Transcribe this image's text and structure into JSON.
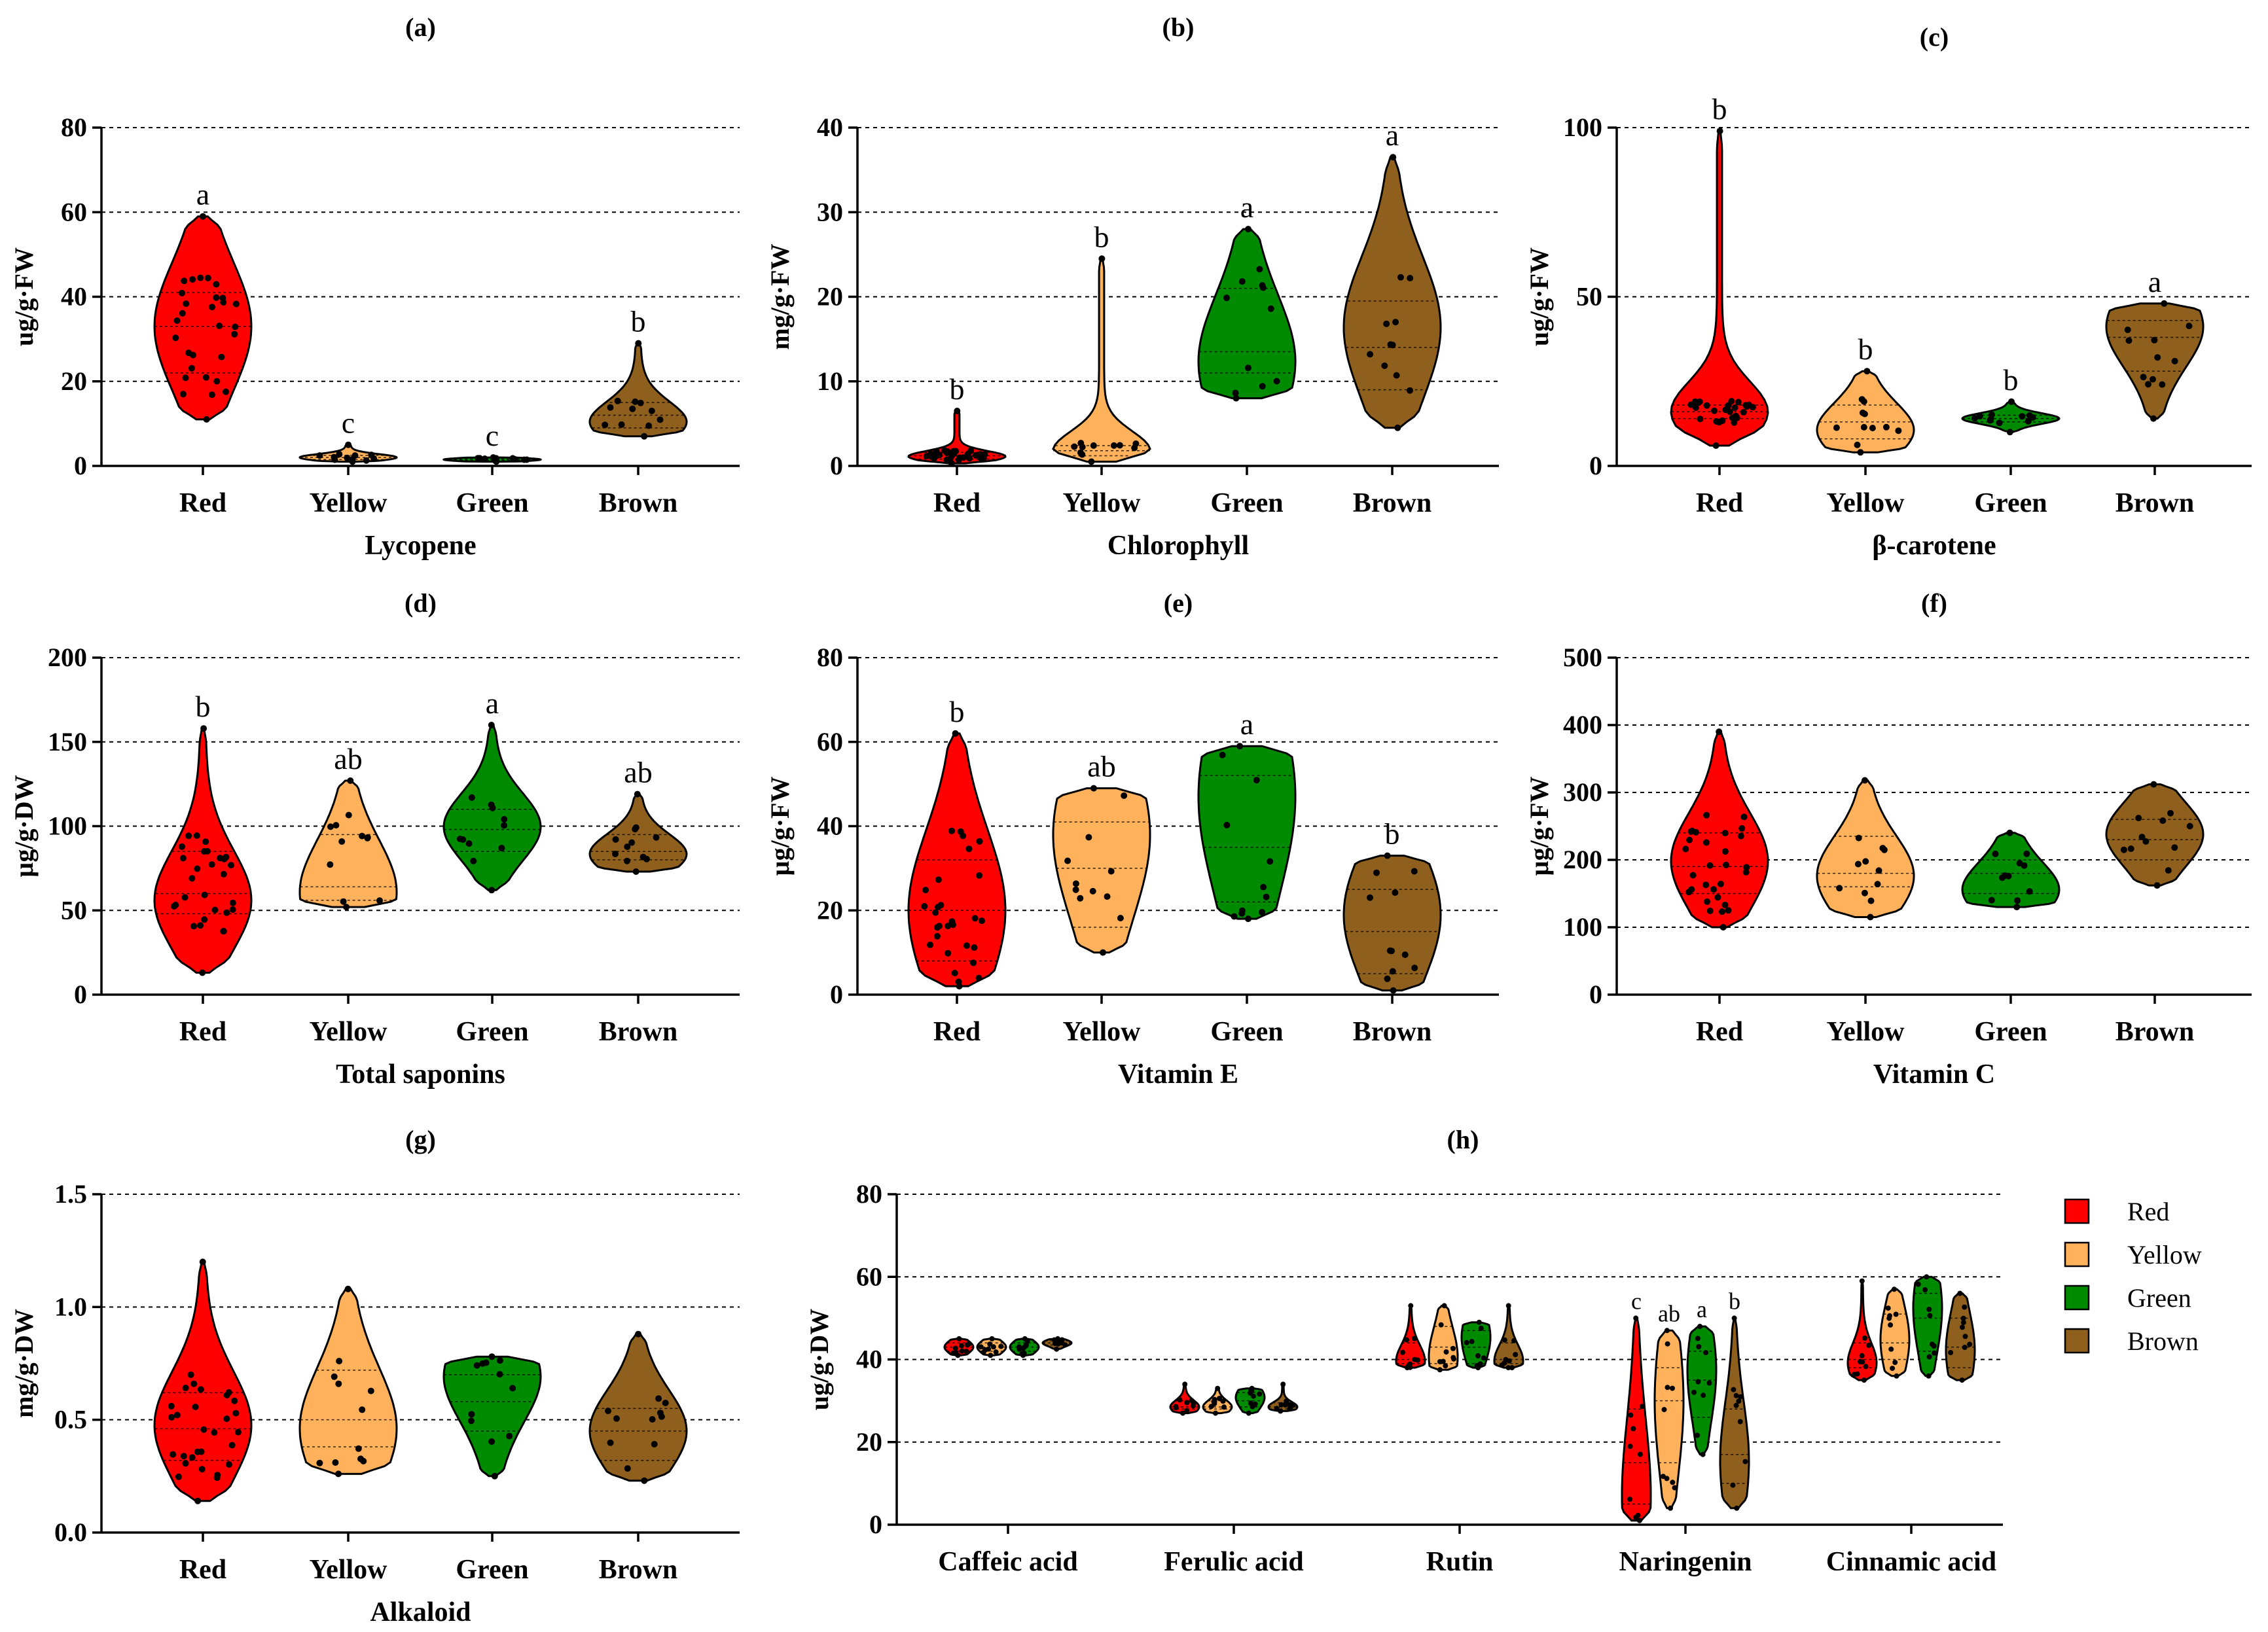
{
  "colors": {
    "Red": "#ff0000",
    "Yellow": "#ffb15c",
    "Green": "#008a00",
    "Brown": "#8f5f1e"
  },
  "legend": {
    "entries": [
      "Red",
      "Yellow",
      "Green",
      "Brown"
    ]
  },
  "chart_data": [
    {
      "id": "a",
      "panel_label": "(a)",
      "type": "violin",
      "xlabel": "Lycopene",
      "ylabel": "ug/g·FW",
      "ylim": [
        0,
        80
      ],
      "yticks": [
        0,
        20,
        40,
        60,
        80
      ],
      "ytick_labels": [
        "0",
        "20",
        "40",
        "60",
        "80"
      ],
      "categories": [
        "Red",
        "Yellow",
        "Green",
        "Brown"
      ],
      "groups": [
        {
          "name": "Red",
          "min": 11,
          "max": 59,
          "q1": 22,
          "median": 33,
          "q3": 41,
          "mode": 33,
          "sig": "a"
        },
        {
          "name": "Yellow",
          "min": 1,
          "max": 5,
          "q1": 1.5,
          "median": 2,
          "q3": 2.5,
          "mode": 2,
          "sig": "c"
        },
        {
          "name": "Green",
          "min": 1,
          "max": 2,
          "q1": 1.3,
          "median": 1.5,
          "q3": 1.8,
          "mode": 1.5,
          "sig": "c"
        },
        {
          "name": "Brown",
          "min": 7,
          "max": 29,
          "q1": 9,
          "median": 12,
          "q3": 15,
          "mode": 10,
          "sig": "b"
        }
      ]
    },
    {
      "id": "b",
      "panel_label": "(b)",
      "type": "violin",
      "xlabel": "Chlorophyll",
      "ylabel": "mg/g·FW",
      "ylim": [
        0,
        40
      ],
      "yticks": [
        0,
        10,
        20,
        30,
        40
      ],
      "ytick_labels": [
        "0",
        "10",
        "20",
        "30",
        "40"
      ],
      "categories": [
        "Red",
        "Yellow",
        "Green",
        "Brown"
      ],
      "groups": [
        {
          "name": "Red",
          "min": 0.3,
          "max": 6.5,
          "q1": 0.8,
          "median": 1.2,
          "q3": 1.6,
          "mode": 1.1,
          "sig": "b"
        },
        {
          "name": "Yellow",
          "min": 0.5,
          "max": 24.5,
          "q1": 1.2,
          "median": 1.8,
          "q3": 2.4,
          "mode": 1.8,
          "sig": "b"
        },
        {
          "name": "Green",
          "min": 8,
          "max": 28,
          "q1": 11,
          "median": 13.5,
          "q3": 21,
          "mode": 12,
          "sig": "a"
        },
        {
          "name": "Brown",
          "min": 4.5,
          "max": 36.5,
          "q1": 9,
          "median": 14,
          "q3": 19.5,
          "mode": 17,
          "sig": "a"
        }
      ]
    },
    {
      "id": "c",
      "panel_label": "(c)",
      "type": "violin",
      "xlabel": "β-carotene",
      "ylabel": "ug/g·FW",
      "ylim": [
        0,
        100
      ],
      "yticks": [
        0,
        50,
        100
      ],
      "ytick_labels": [
        "0",
        "50",
        "100"
      ],
      "categories": [
        "Red",
        "Yellow",
        "Green",
        "Brown"
      ],
      "groups": [
        {
          "name": "Red",
          "min": 6,
          "max": 99,
          "q1": 14,
          "median": 16,
          "q3": 18,
          "mode": 16,
          "sig": "b"
        },
        {
          "name": "Yellow",
          "min": 4,
          "max": 28,
          "q1": 8,
          "median": 13,
          "q3": 18,
          "mode": 10,
          "sig": "b"
        },
        {
          "name": "Green",
          "min": 10,
          "max": 19,
          "q1": 13,
          "median": 14,
          "q3": 15,
          "mode": 14,
          "sig": "b"
        },
        {
          "name": "Brown",
          "min": 14,
          "max": 48,
          "q1": 28,
          "median": 38,
          "q3": 43,
          "mode": 42,
          "sig": "a"
        }
      ]
    },
    {
      "id": "d",
      "panel_label": "(d)",
      "type": "violin",
      "xlabel": "Total saponins",
      "ylabel": "µg/g·DW",
      "ylim": [
        0,
        200
      ],
      "yticks": [
        0,
        50,
        100,
        150,
        200
      ],
      "ytick_labels": [
        "0",
        "50",
        "100",
        "150",
        "200"
      ],
      "categories": [
        "Red",
        "Yellow",
        "Green",
        "Brown"
      ],
      "groups": [
        {
          "name": "Red",
          "min": 13,
          "max": 158,
          "q1": 48,
          "median": 60,
          "q3": 85,
          "mode": 55,
          "sig": "b"
        },
        {
          "name": "Yellow",
          "min": 52,
          "max": 127,
          "q1": 56,
          "median": 64,
          "q3": 95,
          "mode": 60,
          "sig": "ab"
        },
        {
          "name": "Green",
          "min": 62,
          "max": 160,
          "q1": 85,
          "median": 98,
          "q3": 110,
          "mode": 100,
          "sig": "a"
        },
        {
          "name": "Brown",
          "min": 73,
          "max": 119,
          "q1": 80,
          "median": 85,
          "q3": 95,
          "mode": 83,
          "sig": "ab"
        }
      ]
    },
    {
      "id": "e",
      "panel_label": "(e)",
      "type": "violin",
      "xlabel": "Vitamin E",
      "ylabel": "µg/g·FW",
      "ylim": [
        0,
        80
      ],
      "yticks": [
        0,
        20,
        40,
        60,
        80
      ],
      "ytick_labels": [
        "0",
        "20",
        "40",
        "60",
        "80"
      ],
      "categories": [
        "Red",
        "Yellow",
        "Green",
        "Brown"
      ],
      "groups": [
        {
          "name": "Red",
          "min": 2,
          "max": 62,
          "q1": 8,
          "median": 20,
          "q3": 32,
          "mode": 20,
          "sig": "b"
        },
        {
          "name": "Yellow",
          "min": 10,
          "max": 49,
          "q1": 16,
          "median": 30,
          "q3": 41,
          "mode": 40,
          "sig": "ab"
        },
        {
          "name": "Green",
          "min": 18,
          "max": 59,
          "q1": 22,
          "median": 35,
          "q3": 52,
          "mode": 50,
          "sig": "a"
        },
        {
          "name": "Brown",
          "min": 1,
          "max": 33,
          "q1": 5,
          "median": 15,
          "q3": 25,
          "mode": 20,
          "sig": "b"
        }
      ]
    },
    {
      "id": "f",
      "panel_label": "(f)",
      "type": "violin",
      "xlabel": "Vitamin C",
      "ylabel": "µg/g·FW",
      "ylim": [
        0,
        500
      ],
      "yticks": [
        0,
        100,
        200,
        300,
        400,
        500
      ],
      "ytick_labels": [
        "0",
        "100",
        "200",
        "300",
        "400",
        "500"
      ],
      "categories": [
        "Red",
        "Yellow",
        "Green",
        "Brown"
      ],
      "groups": [
        {
          "name": "Red",
          "min": 100,
          "max": 390,
          "q1": 150,
          "median": 190,
          "q3": 240,
          "mode": 200,
          "sig": ""
        },
        {
          "name": "Yellow",
          "min": 115,
          "max": 318,
          "q1": 160,
          "median": 180,
          "q3": 235,
          "mode": 175,
          "sig": ""
        },
        {
          "name": "Green",
          "min": 130,
          "max": 240,
          "q1": 150,
          "median": 180,
          "q3": 200,
          "mode": 150,
          "sig": ""
        },
        {
          "name": "Brown",
          "min": 162,
          "max": 312,
          "q1": 200,
          "median": 230,
          "q3": 260,
          "mode": 240,
          "sig": ""
        }
      ]
    },
    {
      "id": "g",
      "panel_label": "(g)",
      "type": "violin",
      "xlabel": "Alkaloid",
      "ylabel": "mg/g·DW",
      "ylim": [
        0,
        1.5
      ],
      "yticks": [
        0,
        0.5,
        1.0,
        1.5
      ],
      "ytick_labels": [
        "0.0",
        "0.5",
        "1.0",
        "1.5"
      ],
      "categories": [
        "Red",
        "Yellow",
        "Green",
        "Brown"
      ],
      "groups": [
        {
          "name": "Red",
          "min": 0.14,
          "max": 1.2,
          "q1": 0.32,
          "median": 0.46,
          "q3": 0.62,
          "mode": 0.48,
          "sig": ""
        },
        {
          "name": "Yellow",
          "min": 0.26,
          "max": 1.08,
          "q1": 0.38,
          "median": 0.5,
          "q3": 0.72,
          "mode": 0.45,
          "sig": ""
        },
        {
          "name": "Green",
          "min": 0.25,
          "max": 0.78,
          "q1": 0.45,
          "median": 0.58,
          "q3": 0.7,
          "mode": 0.72,
          "sig": ""
        },
        {
          "name": "Brown",
          "min": 0.23,
          "max": 0.88,
          "q1": 0.32,
          "median": 0.45,
          "q3": 0.55,
          "mode": 0.45,
          "sig": ""
        }
      ]
    },
    {
      "id": "h",
      "panel_label": "(h)",
      "type": "violin",
      "xlabel": "",
      "ylabel": "ug/g·DW",
      "ylim": [
        0,
        80
      ],
      "yticks": [
        0,
        20,
        40,
        60,
        80
      ],
      "ytick_labels": [
        "0",
        "20",
        "40",
        "60",
        "80"
      ],
      "categories": [
        "Caffeic acid",
        "Ferulic acid",
        "Rutin",
        "Naringenin",
        "Cinnamic acid"
      ],
      "series": [
        "Red",
        "Yellow",
        "Green",
        "Brown"
      ],
      "groups": [
        {
          "category": "Caffeic acid",
          "name": "Red",
          "min": 41,
          "max": 45,
          "q1": 42,
          "median": 43,
          "q3": 44,
          "mode": 43,
          "sig": ""
        },
        {
          "category": "Caffeic acid",
          "name": "Yellow",
          "min": 41,
          "max": 45,
          "q1": 42,
          "median": 43,
          "q3": 44,
          "mode": 43,
          "sig": ""
        },
        {
          "category": "Caffeic acid",
          "name": "Green",
          "min": 41,
          "max": 45,
          "q1": 42,
          "median": 43,
          "q3": 44,
          "mode": 43,
          "sig": ""
        },
        {
          "category": "Caffeic acid",
          "name": "Brown",
          "min": 42.5,
          "max": 45,
          "q1": 43.5,
          "median": 44,
          "q3": 44.5,
          "mode": 44,
          "sig": ""
        },
        {
          "category": "Ferulic acid",
          "name": "Red",
          "min": 27,
          "max": 34,
          "q1": 28,
          "median": 28.5,
          "q3": 30,
          "mode": 28.5,
          "sig": ""
        },
        {
          "category": "Ferulic acid",
          "name": "Yellow",
          "min": 27,
          "max": 33,
          "q1": 28,
          "median": 28.5,
          "q3": 30,
          "mode": 28.5,
          "sig": ""
        },
        {
          "category": "Ferulic acid",
          "name": "Green",
          "min": 27,
          "max": 33,
          "q1": 28.5,
          "median": 30,
          "q3": 32,
          "mode": 31,
          "sig": ""
        },
        {
          "category": "Ferulic acid",
          "name": "Brown",
          "min": 27.5,
          "max": 34,
          "q1": 28,
          "median": 28.5,
          "q3": 29.5,
          "mode": 28.5,
          "sig": ""
        },
        {
          "category": "Rutin",
          "name": "Red",
          "min": 38,
          "max": 53,
          "q1": 39,
          "median": 40,
          "q3": 44,
          "mode": 39.5,
          "sig": ""
        },
        {
          "category": "Rutin",
          "name": "Yellow",
          "min": 37.5,
          "max": 53,
          "q1": 39,
          "median": 43,
          "q3": 48,
          "mode": 40,
          "sig": ""
        },
        {
          "category": "Rutin",
          "name": "Green",
          "min": 38,
          "max": 49,
          "q1": 39,
          "median": 43,
          "q3": 47,
          "mode": 46,
          "sig": ""
        },
        {
          "category": "Rutin",
          "name": "Brown",
          "min": 38,
          "max": 53,
          "q1": 39,
          "median": 40,
          "q3": 44,
          "mode": 39.5,
          "sig": ""
        },
        {
          "category": "Naringenin",
          "name": "Red",
          "min": 1,
          "max": 50,
          "q1": 5,
          "median": 15,
          "q3": 28,
          "mode": 5,
          "sig": "c"
        },
        {
          "category": "Naringenin",
          "name": "Yellow",
          "min": 4,
          "max": 47,
          "q1": 15,
          "median": 30,
          "q3": 38,
          "mode": 30,
          "sig": "ab"
        },
        {
          "category": "Naringenin",
          "name": "Green",
          "min": 17,
          "max": 48,
          "q1": 26,
          "median": 35,
          "q3": 42,
          "mode": 38,
          "sig": "a"
        },
        {
          "category": "Naringenin",
          "name": "Brown",
          "min": 4,
          "max": 50,
          "q1": 10,
          "median": 17,
          "q3": 28,
          "mode": 15,
          "sig": "b"
        },
        {
          "category": "Cinnamic acid",
          "name": "Red",
          "min": 35,
          "max": 59,
          "q1": 38,
          "median": 40,
          "q3": 44,
          "mode": 39,
          "sig": ""
        },
        {
          "category": "Cinnamic acid",
          "name": "Yellow",
          "min": 36,
          "max": 57,
          "q1": 40,
          "median": 44,
          "q3": 51,
          "mode": 45,
          "sig": ""
        },
        {
          "category": "Cinnamic acid",
          "name": "Green",
          "min": 36,
          "max": 60,
          "q1": 42,
          "median": 50,
          "q3": 56,
          "mode": 53,
          "sig": ""
        },
        {
          "category": "Cinnamic acid",
          "name": "Brown",
          "min": 35,
          "max": 56,
          "q1": 38,
          "median": 43,
          "q3": 50,
          "mode": 42,
          "sig": ""
        }
      ]
    }
  ]
}
